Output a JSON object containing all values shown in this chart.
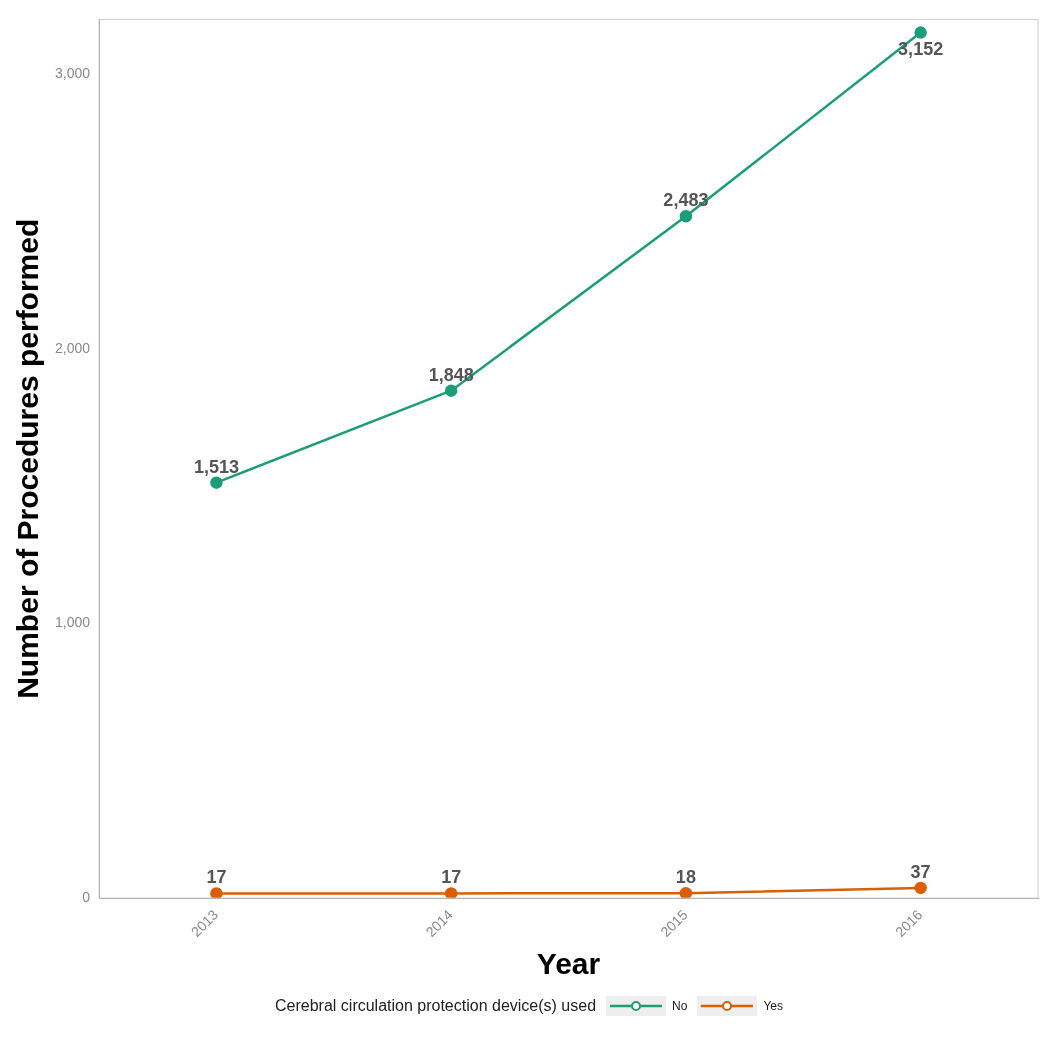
{
  "chart_data": {
    "type": "line",
    "xlabel": "Year",
    "ylabel": "Number of Procedures performed",
    "legend_title": "Cerebral circulation protection device(s) used",
    "categories": [
      "2013",
      "2014",
      "2015",
      "2016"
    ],
    "series": [
      {
        "name": "No",
        "color": "#1b9e77",
        "values": [
          1513,
          1848,
          2483,
          3152
        ],
        "value_labels": [
          "1,513",
          "1,848",
          "2,483",
          "3,152"
        ]
      },
      {
        "name": "Yes",
        "color": "#d95f02",
        "values": [
          17,
          17,
          18,
          37
        ],
        "value_labels": [
          "17",
          "17",
          "18",
          "37"
        ]
      }
    ],
    "ylim": [
      0,
      3200
    ],
    "yticks": [
      {
        "value": 0,
        "label": "0"
      },
      {
        "value": 1000,
        "label": "1,000"
      },
      {
        "value": 2000,
        "label": "2,000"
      },
      {
        "value": 3000,
        "label": "3,000"
      }
    ],
    "grid": false,
    "legend": "bottom",
    "marker": "circle",
    "line_style": "solid"
  }
}
